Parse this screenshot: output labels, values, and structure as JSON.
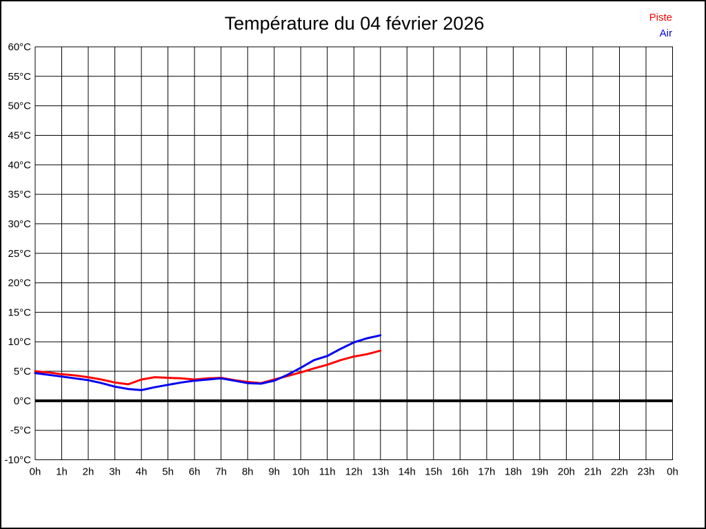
{
  "title": "Température du 04 février 2026",
  "chart_data": {
    "type": "line",
    "title": "Température du 04 février 2026",
    "xlabel": "",
    "ylabel": "",
    "xlim": [
      0,
      24
    ],
    "ylim": [
      -10,
      60
    ],
    "grid": true,
    "legend_position": "top-right",
    "baseline": 0,
    "baseline_color": "#000000",
    "grid_color": "#000000",
    "x_ticks": {
      "values": [
        0,
        1,
        2,
        3,
        4,
        5,
        6,
        7,
        8,
        9,
        10,
        11,
        12,
        13,
        14,
        15,
        16,
        17,
        18,
        19,
        20,
        21,
        22,
        23,
        24
      ],
      "labels": [
        "0h",
        "1h",
        "2h",
        "3h",
        "4h",
        "5h",
        "6h",
        "7h",
        "8h",
        "9h",
        "10h",
        "11h",
        "12h",
        "13h",
        "14h",
        "15h",
        "16h",
        "17h",
        "18h",
        "19h",
        "20h",
        "21h",
        "22h",
        "23h",
        "0h"
      ]
    },
    "y_ticks": {
      "values": [
        60,
        55,
        50,
        45,
        40,
        35,
        30,
        25,
        20,
        15,
        10,
        5,
        0,
        -5,
        -10
      ],
      "labels": [
        "60°C",
        "55°C",
        "50°C",
        "45°C",
        "40°C",
        "35°C",
        "30°C",
        "25°C",
        "20°C",
        "15°C",
        "10°C",
        "5°C",
        "0°C",
        "-5°C",
        "-10°C"
      ]
    },
    "series": [
      {
        "name": "Piste",
        "unit": "°C",
        "color": "#ff0000",
        "x": [
          0,
          0.5,
          1,
          1.5,
          2,
          2.5,
          3,
          3.5,
          4,
          4.5,
          5,
          5.5,
          6,
          6.5,
          7,
          7.5,
          8,
          8.5,
          9,
          9.5,
          10,
          10.5,
          11,
          11.5,
          12,
          12.5,
          13
        ],
        "y": [
          5.0,
          4.8,
          4.5,
          4.3,
          4.0,
          3.6,
          3.1,
          2.8,
          3.6,
          4.0,
          3.9,
          3.8,
          3.6,
          3.8,
          3.9,
          3.5,
          3.2,
          3.0,
          3.6,
          4.2,
          4.8,
          5.5,
          6.1,
          6.9,
          7.5,
          7.9,
          8.5
        ]
      },
      {
        "name": "Air",
        "unit": "°C",
        "color": "#0000f0",
        "x": [
          0,
          0.5,
          1,
          1.5,
          2,
          2.5,
          3,
          3.5,
          4,
          4.5,
          5,
          5.5,
          6,
          6.5,
          7,
          7.5,
          8,
          8.5,
          9,
          9.5,
          10,
          10.5,
          11,
          11.5,
          12,
          12.5,
          13
        ],
        "y": [
          4.7,
          4.4,
          4.1,
          3.8,
          3.5,
          3.0,
          2.4,
          2.0,
          1.8,
          2.3,
          2.7,
          3.1,
          3.4,
          3.6,
          3.8,
          3.4,
          3.0,
          2.9,
          3.4,
          4.4,
          5.6,
          6.9,
          7.6,
          8.8,
          9.9,
          10.6,
          11.1
        ]
      }
    ]
  }
}
